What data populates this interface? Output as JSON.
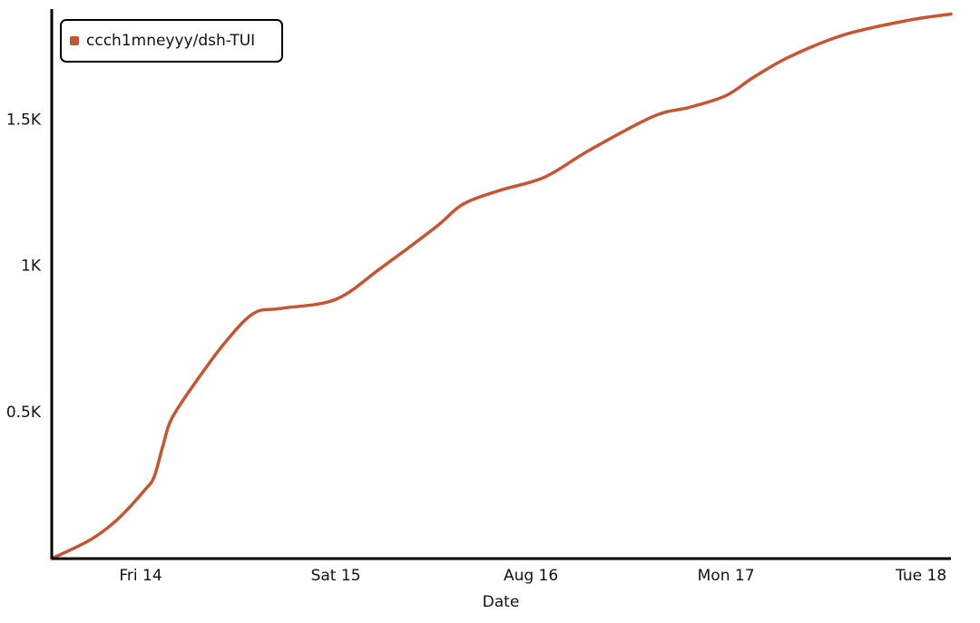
{
  "chart_data": {
    "type": "line",
    "x_label": "Date",
    "xlim": [
      13.544,
      18.153
    ],
    "xticks": [
      {
        "value": 14,
        "label": "Fri 14"
      },
      {
        "value": 15,
        "label": "Sat 15"
      },
      {
        "value": 16,
        "label": "Aug 16"
      },
      {
        "value": 17,
        "label": "Mon 17"
      },
      {
        "value": 18,
        "label": "Tue 18"
      }
    ],
    "ylim": [
      0,
      1880
    ],
    "yticks": [
      {
        "value": 500,
        "label": "0.5K"
      },
      {
        "value": 1000,
        "label": "1K"
      },
      {
        "value": 1500,
        "label": "1.5K"
      }
    ],
    "legend": "top-left",
    "series": [
      {
        "name": "ccch1mneyyy/dsh-TUI",
        "color": "#c65532",
        "x": [
          13.544,
          13.744,
          13.884,
          14.023,
          14.07,
          14.116,
          14.163,
          14.302,
          14.442,
          14.581,
          14.721,
          15.0,
          15.233,
          15.512,
          15.651,
          15.837,
          16.07,
          16.302,
          16.628,
          16.814,
          17.0,
          17.14,
          17.326,
          17.605,
          17.93,
          18.153
        ],
        "values": [
          0,
          65,
          136,
          236,
          282,
          391,
          484,
          623,
          747,
          840,
          856,
          887,
          995,
          1134,
          1212,
          1259,
          1305,
          1398,
          1513,
          1544,
          1584,
          1646,
          1717,
          1792,
          1841,
          1863
        ]
      }
    ]
  }
}
